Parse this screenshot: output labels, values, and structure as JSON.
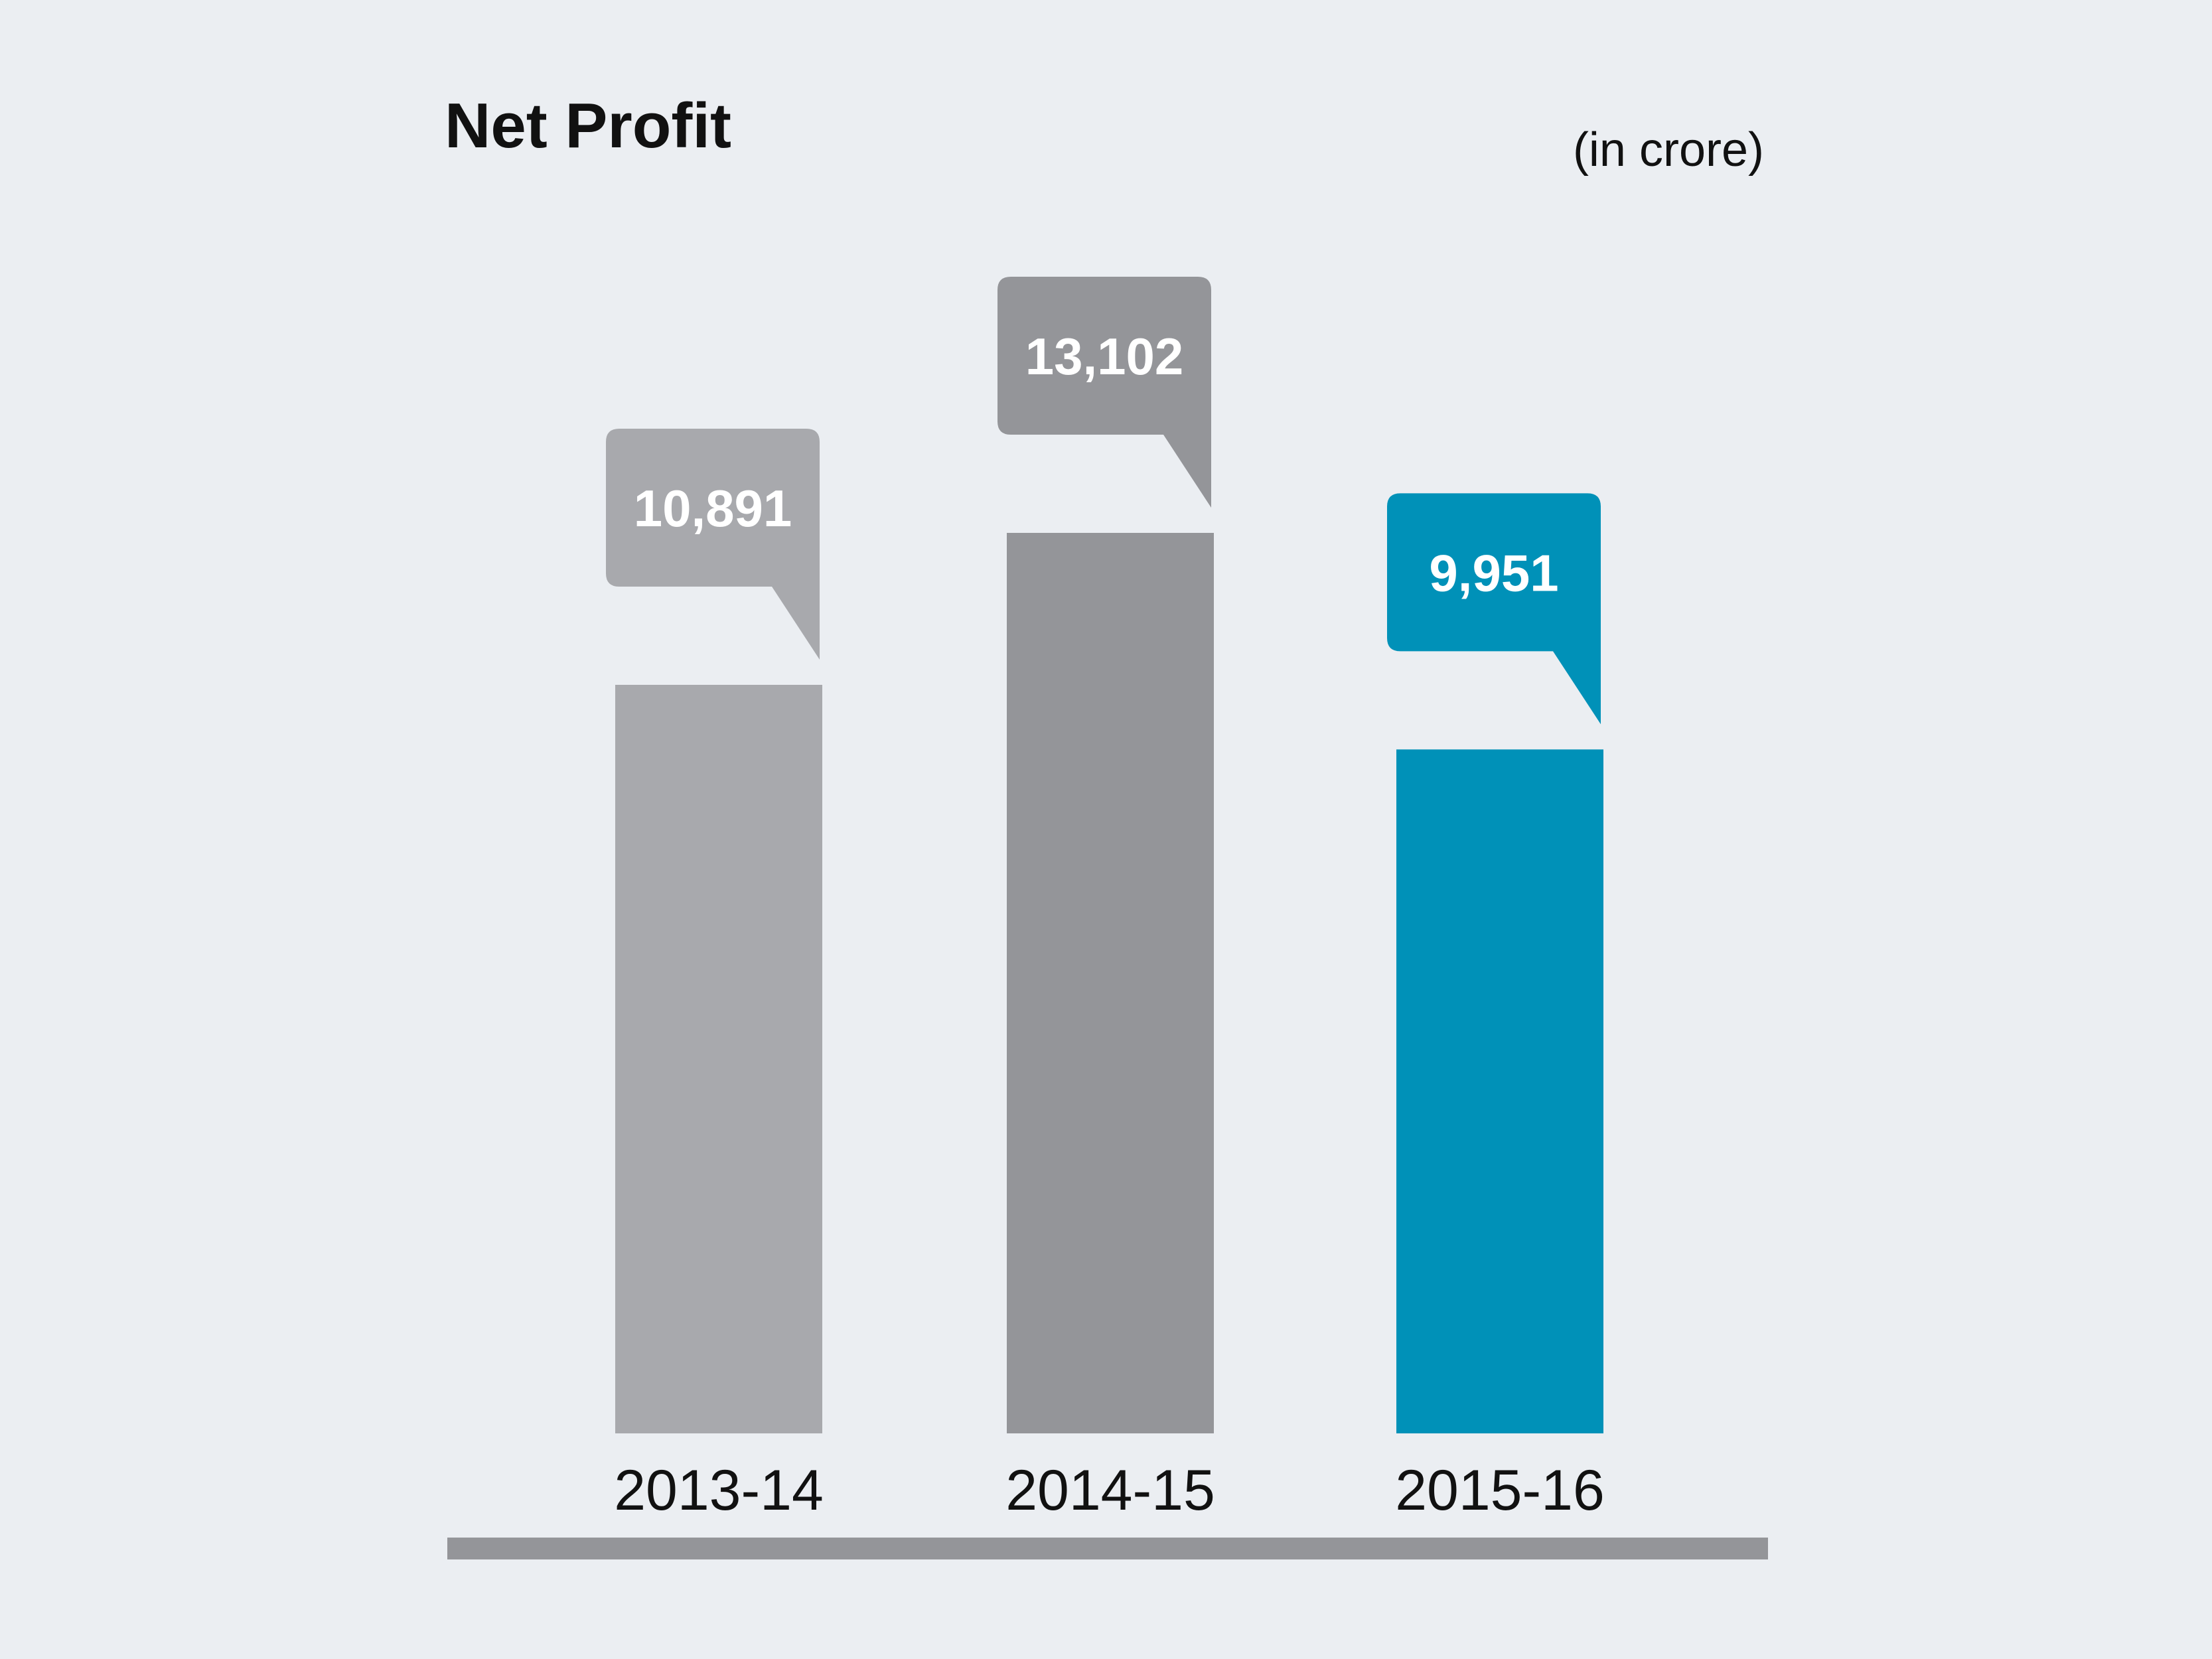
{
  "chart_data": {
    "type": "bar",
    "title": "Net Profit",
    "unit_label": "(in crore)",
    "categories": [
      "2013-14",
      "2014-15",
      "2015-16"
    ],
    "values": [
      10891,
      13102,
      9951
    ],
    "value_labels": [
      "10,891",
      "13,102",
      "9,951"
    ],
    "colors": [
      "#a8a9ad",
      "#949599",
      "#0091b8"
    ],
    "ylim": [
      0,
      14000
    ],
    "grid": false,
    "legend": "none",
    "baseline_color": "#949599"
  }
}
